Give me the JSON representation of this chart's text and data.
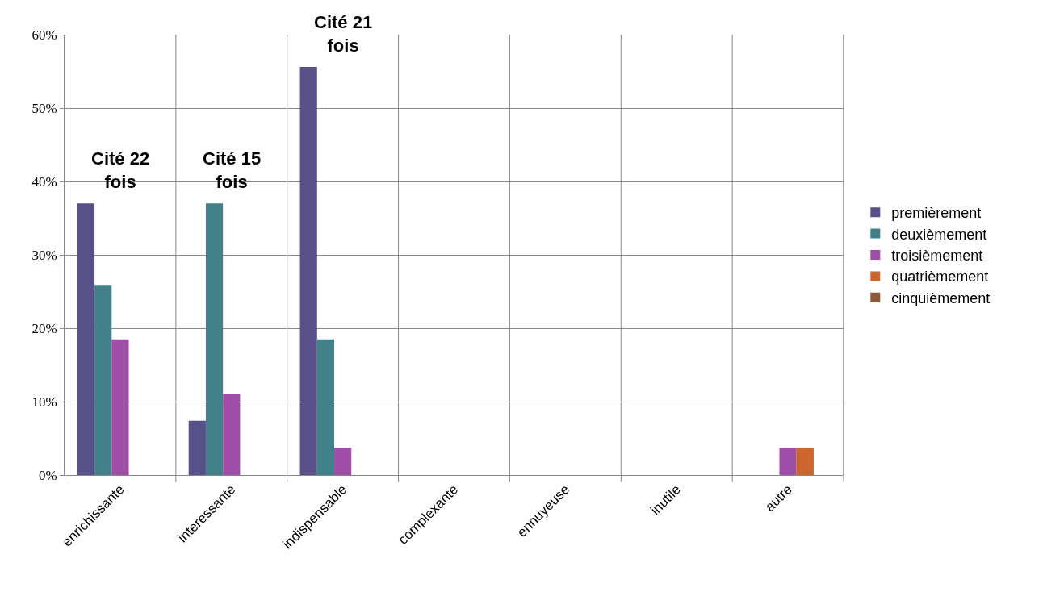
{
  "chart_data": {
    "type": "bar",
    "categories": [
      "enrichissante",
      "interessante",
      "indispensable",
      "complexante",
      "ennuyeuse",
      "inutile",
      "autre"
    ],
    "series": [
      {
        "name": "premièrement",
        "color": "#575089",
        "values": [
          37.0,
          7.4,
          55.6,
          0,
          0,
          0,
          0
        ]
      },
      {
        "name": "deuxièmement",
        "color": "#42818a",
        "values": [
          25.9,
          37.0,
          18.5,
          0,
          0,
          0,
          0
        ]
      },
      {
        "name": "troisièmement",
        "color": "#a04fa8",
        "values": [
          18.5,
          11.1,
          3.7,
          0,
          0,
          0,
          3.7
        ]
      },
      {
        "name": "quatrièmement",
        "color": "#cd662c",
        "values": [
          0,
          0,
          0,
          0,
          0,
          0,
          3.7
        ]
      },
      {
        "name": "cinquièmement",
        "color": "#8b5a3a",
        "values": [
          0,
          0,
          0,
          0,
          0,
          0,
          0
        ]
      }
    ],
    "ylim": [
      0,
      60
    ],
    "yticks": [
      {
        "value": 0,
        "label": "0%"
      },
      {
        "value": 10,
        "label": "10%"
      },
      {
        "value": 20,
        "label": "20%"
      },
      {
        "value": 30,
        "label": "30%"
      },
      {
        "value": 40,
        "label": "40%"
      },
      {
        "value": 50,
        "label": "50%"
      },
      {
        "value": 60,
        "label": "60%"
      }
    ],
    "annotations": [
      "Cité 22\nfois",
      "Cité 15\nfois",
      "Cité 21\nfois"
    ],
    "grid": true,
    "legend": "right"
  }
}
